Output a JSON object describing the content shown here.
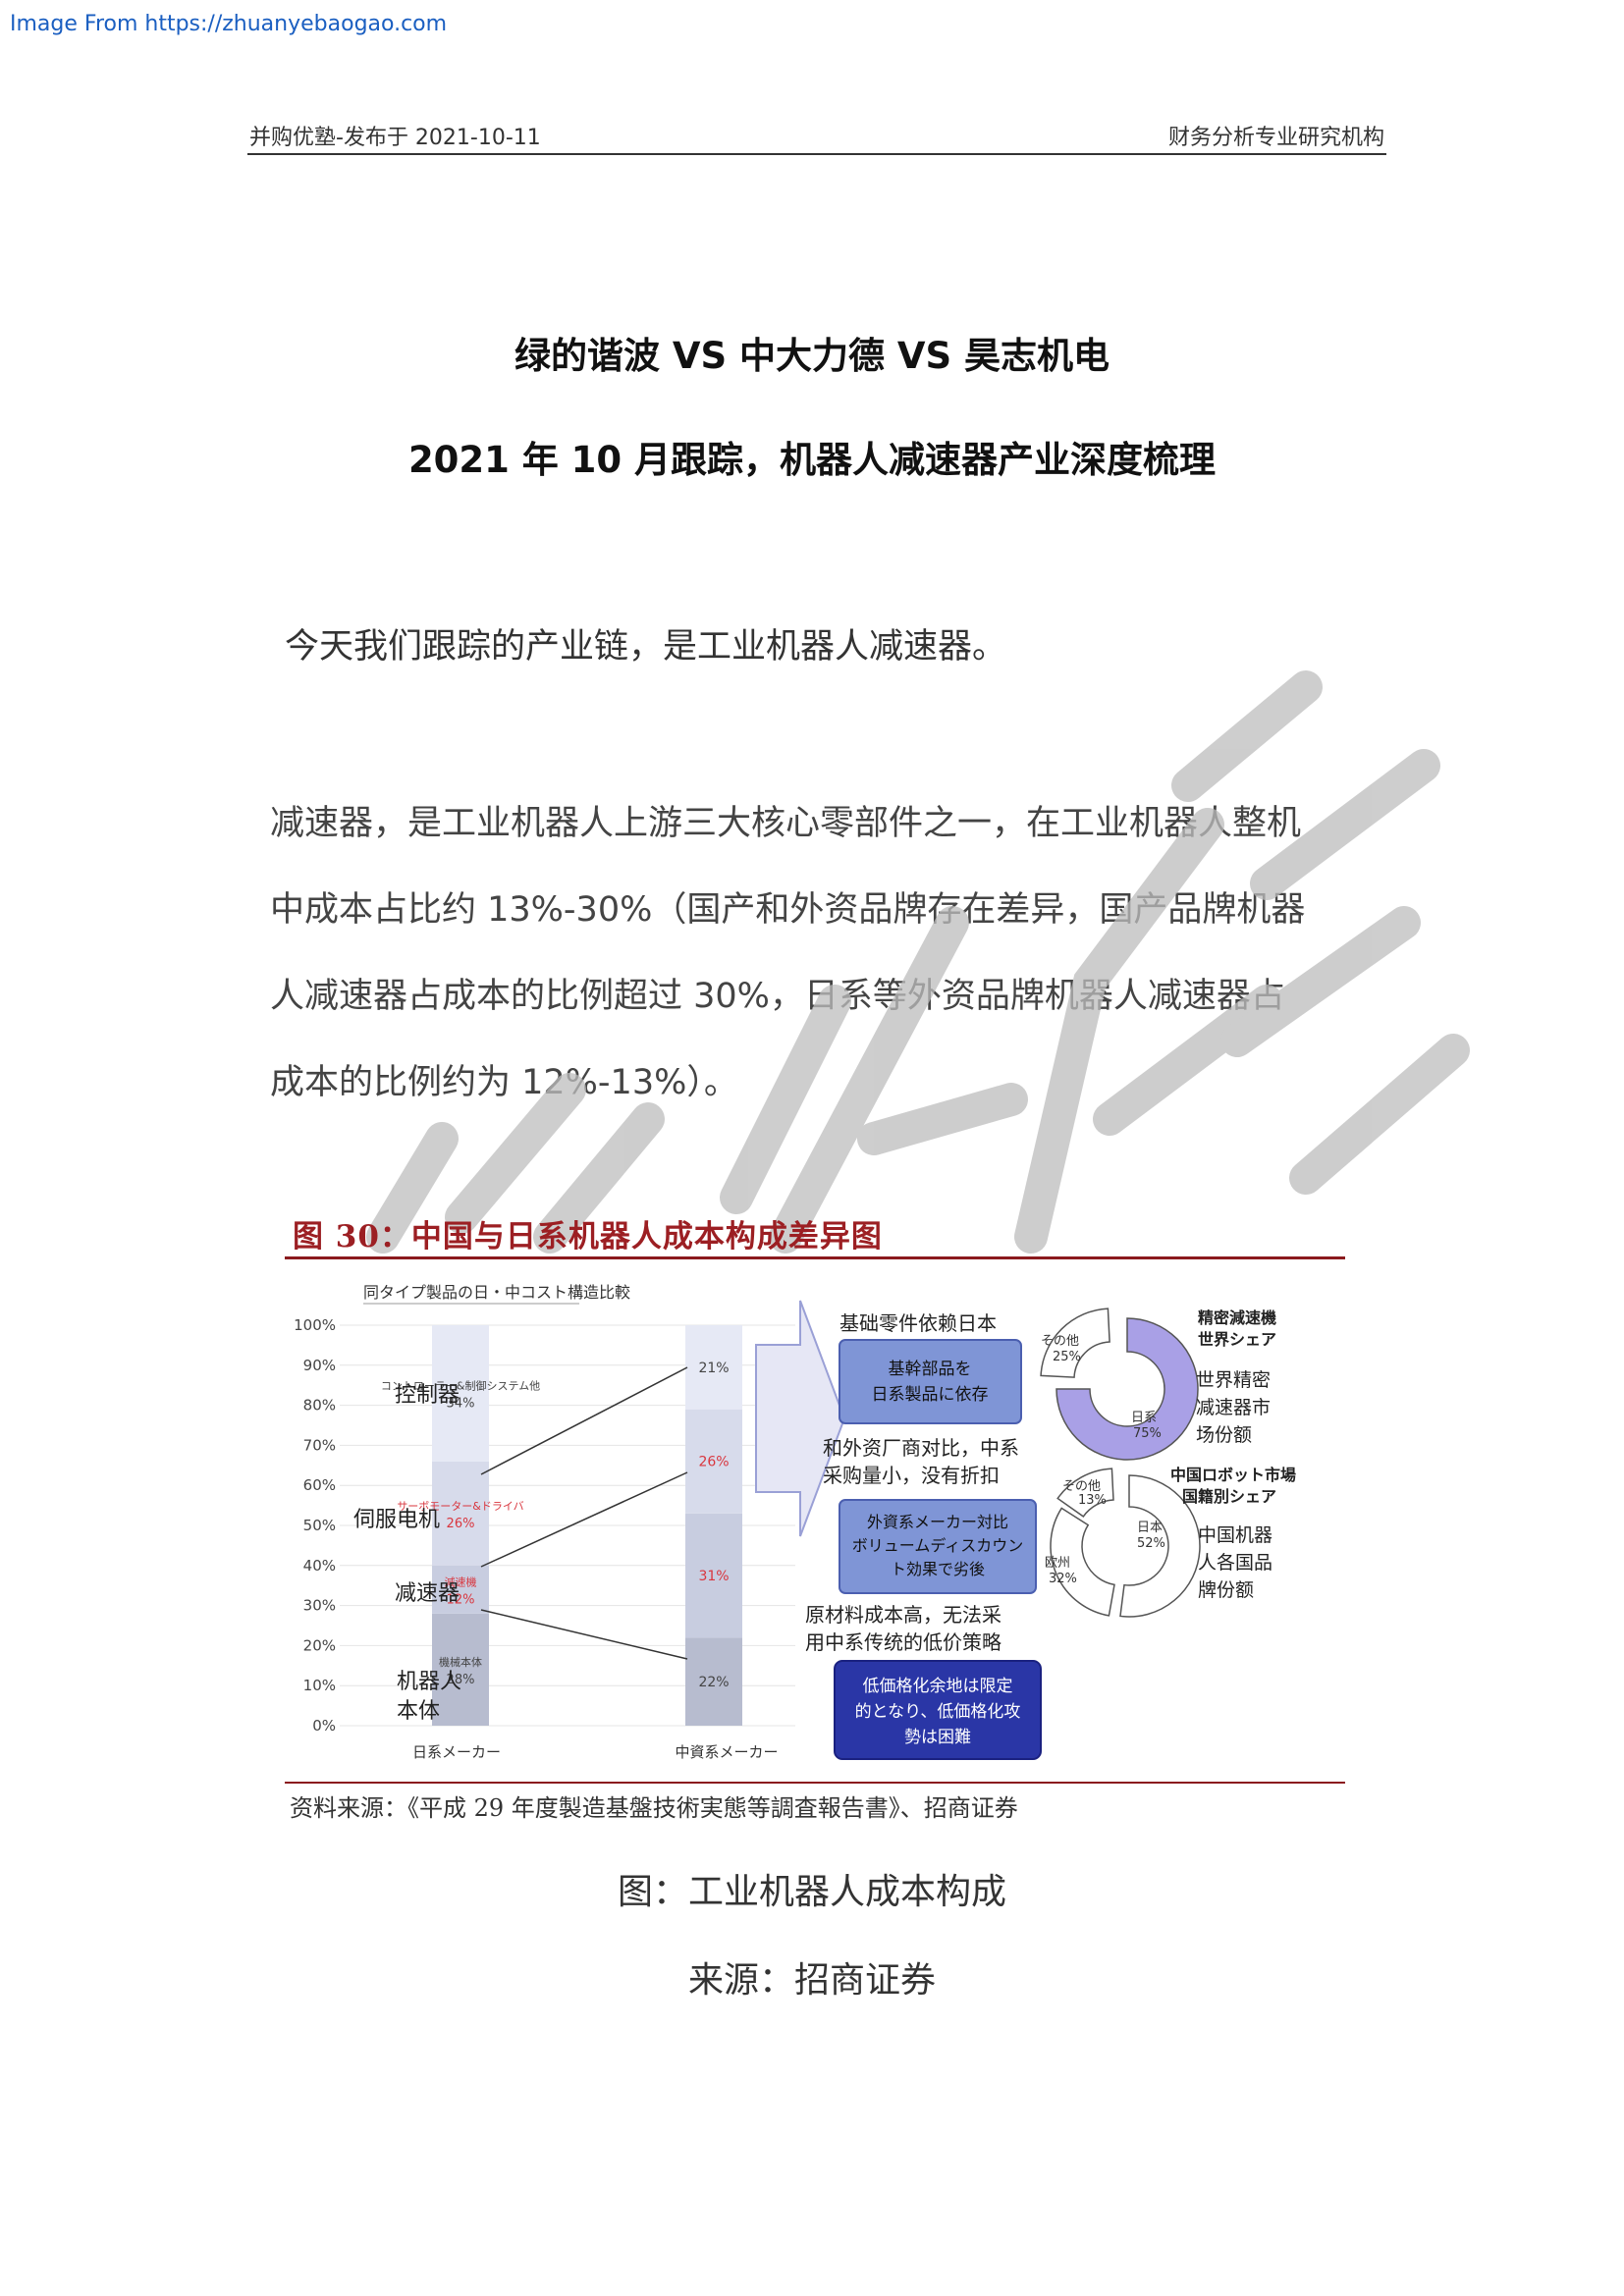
{
  "source_link": "Image From https://zhuanyebaogao.com",
  "header": {
    "left": "并购优塾-发布于 2021-10-11",
    "right": "财务分析专业研究机构"
  },
  "title_line1": "绿的谐波 VS 中大力德 VS 昊志机电",
  "title_line2": "2021 年 10 月跟踪，机器人减速器产业深度梳理",
  "intro": "今天我们跟踪的产业链，是工业机器人减速器。",
  "paragraph_lines": [
    "减速器，是工业机器人上游三大核心零部件之一，在工业机器人整机",
    "中成本占比约 13%-30%（国产和外资品牌存在差异，国产品牌机器",
    "人减速器占成本的比例超过 30%，日系等外资品牌机器人减速器占",
    "成本的比例约为 12%-13%）。"
  ],
  "figure": {
    "title": "图 30：中国与日系机器人成本构成差异图",
    "chart_title": "同タイプ製品の日・中コスト構造比較",
    "y_ticks": [
      "100%",
      "90%",
      "80%",
      "70%",
      "60%",
      "50%",
      "40%",
      "30%",
      "20%",
      "10%",
      "0%"
    ],
    "left_labels": [
      "控制器",
      "伺服电机",
      "减速器",
      "机器人本体"
    ],
    "japan_segments": [
      {
        "label": "コントローラー&制御システム他",
        "value": "34%"
      },
      {
        "label": "サーボモーター&ドライバ",
        "value": "26%"
      },
      {
        "label": "減速機",
        "value": "12%"
      },
      {
        "label": "機械本体",
        "value": "28%"
      }
    ],
    "china_segments": [
      "21%",
      "26%",
      "31%",
      "22%"
    ],
    "x_labels": [
      "日系メーカー",
      "中資系メーカー"
    ],
    "top_note": "基础零件依赖日本",
    "box1": [
      "基幹部品を",
      "日系製品に依存"
    ],
    "note2": [
      "和外资厂商对比，中系",
      "采购量小，没有折扣"
    ],
    "box2": [
      "外資系メーカー対比",
      "ボリュームディスカウン",
      "ト効果で劣後"
    ],
    "note3": [
      "原材料成本高，无法采",
      "用中系传统的低价策略"
    ],
    "box3": [
      "低価格化余地は限定",
      "的となり、低価格化攻",
      "勢は困難"
    ],
    "donut1": {
      "title_lines": [
        "精密減速機",
        "世界シェア"
      ],
      "other_label": "その他",
      "other_value": "25%",
      "japan_label": "日系",
      "japan_value": "75%",
      "desc_lines": [
        "世界精密",
        "减速器市",
        "场份额"
      ]
    },
    "donut2": {
      "title_lines": [
        "中国ロボット市場",
        "国籍別シェア"
      ],
      "other_label": "その他",
      "other_value": "13%",
      "japan_label": "日本",
      "japan_value": "52%",
      "europe_label": "欧州",
      "europe_value": "32%",
      "desc_lines": [
        "中国机器",
        "人各国品",
        "牌份额"
      ]
    },
    "source": "资料来源：《平成 29 年度製造基盤技術実態等調査報告書》、招商证券"
  },
  "caption_line1": "图：工业机器人成本构成",
  "caption_line2": "来源：招商证券",
  "chart_data": {
    "type": "bar",
    "title": "同タイプ製品の日・中コスト構造比較",
    "categories": [
      "日系メーカー",
      "中資系メーカー"
    ],
    "stacked": true,
    "series": [
      {
        "name": "機械本体",
        "values": [
          28,
          22
        ]
      },
      {
        "name": "減速機",
        "values": [
          12,
          31
        ]
      },
      {
        "name": "サーボモーター&ドライバ",
        "values": [
          26,
          26
        ]
      },
      {
        "name": "コントローラー&制御システム他",
        "values": [
          34,
          21
        ]
      }
    ],
    "ylim": [
      0,
      100
    ],
    "y_unit": "%"
  }
}
